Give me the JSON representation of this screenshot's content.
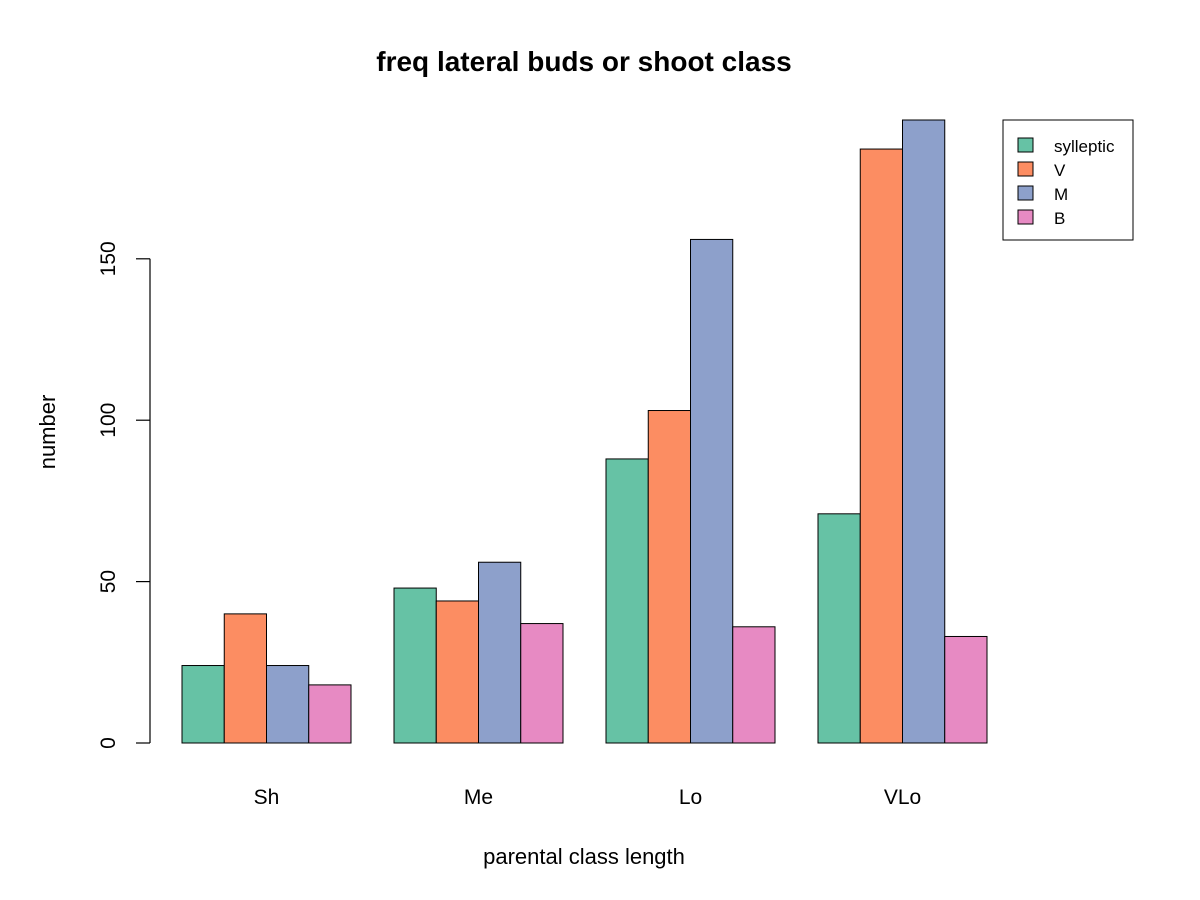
{
  "chart_data": {
    "type": "bar",
    "title": "freq lateral buds or shoot class",
    "xlabel": "parental class length",
    "ylabel": "number",
    "categories": [
      "Sh",
      "Me",
      "Lo",
      "VLo"
    ],
    "series": [
      {
        "name": "sylleptic",
        "color": "#66c2a5",
        "values": [
          24,
          48,
          88,
          71
        ]
      },
      {
        "name": "V",
        "color": "#fc8d62",
        "values": [
          40,
          44,
          103,
          184
        ]
      },
      {
        "name": "M",
        "color": "#8da0cb",
        "values": [
          24,
          56,
          156,
          193
        ]
      },
      {
        "name": "B",
        "color": "#e78ac3",
        "values": [
          18,
          37,
          36,
          33
        ]
      }
    ],
    "ylim": [
      0,
      193
    ],
    "yticks": [
      "0",
      "50",
      "100",
      "150"
    ],
    "grid": false,
    "legend_position": "top-right"
  }
}
